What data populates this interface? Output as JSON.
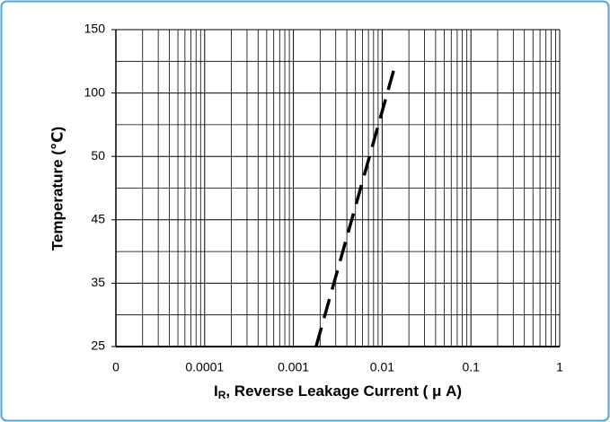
{
  "chart_data": {
    "type": "line",
    "ylabel": "Temperature (℃)",
    "xlabel": {
      "main": "I",
      "subscript": "R",
      "rest": ", Reverse Leakage Current ( μ A)"
    },
    "xscale": "log",
    "xlim": [
      1e-05,
      1
    ],
    "xticks": [
      {
        "value": 1e-05,
        "label": "0"
      },
      {
        "value": 0.0001,
        "label": "0.0001"
      },
      0.001,
      0.01,
      0.1,
      1
    ],
    "ylim": [
      25,
      150
    ],
    "yticks": [
      25,
      35,
      45,
      50,
      100,
      150
    ],
    "grid": true,
    "minor_grid": true,
    "series": [
      {
        "color": "#000000",
        "dash": true,
        "x": [
          0.0018,
          0.0144
        ],
        "values": [
          25,
          125
        ]
      }
    ]
  }
}
